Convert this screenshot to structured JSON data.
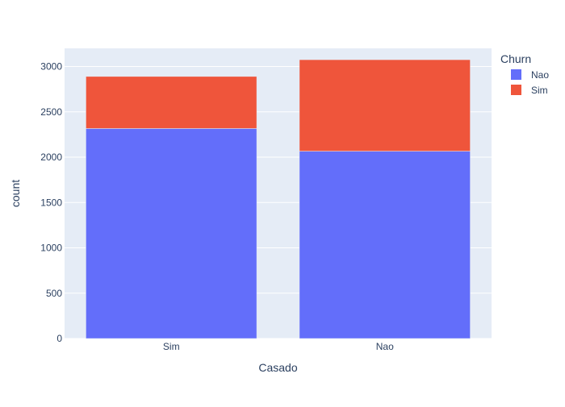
{
  "chart_data": {
    "type": "bar",
    "barmode": "stack",
    "categories": [
      "Sim",
      "Nao"
    ],
    "series": [
      {
        "name": "Nao",
        "color": "#636efa",
        "values": [
          2316,
          2066
        ]
      },
      {
        "name": "Sim",
        "color": "#ef553b",
        "values": [
          574,
          1009
        ]
      }
    ],
    "xlabel": "Casado",
    "ylabel": "count",
    "ylim": [
      0,
      3200
    ],
    "yticks": [
      0,
      500,
      1000,
      1500,
      2000,
      2500,
      3000
    ],
    "ytick_labels": [
      "0",
      "500",
      "1000",
      "1500",
      "2000",
      "2500",
      "3000"
    ],
    "grid": true,
    "legend": {
      "title": "Churn",
      "position": "top-right"
    },
    "colors": {
      "plot_background": "#e5ecf6",
      "grid": "#ffffff",
      "text": "#2a3f5f"
    }
  }
}
